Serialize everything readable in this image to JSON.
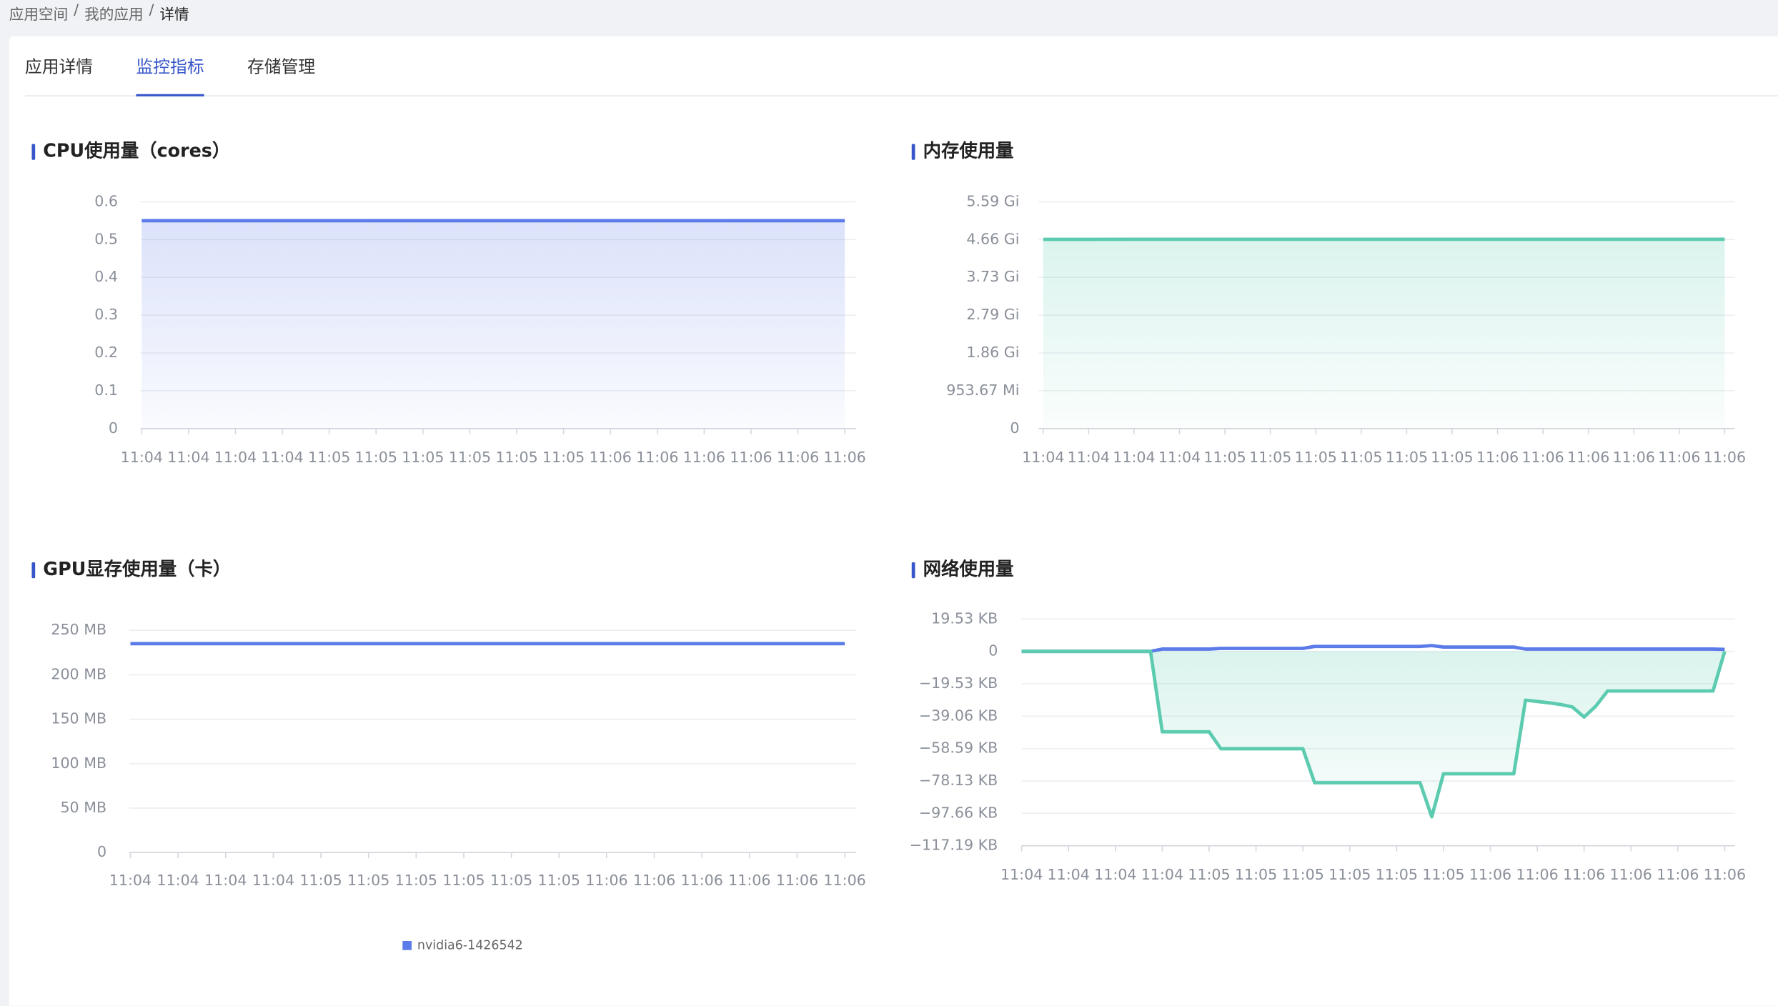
{
  "breadcrumb": {
    "items": [
      "应用空间",
      "我的应用",
      "详情"
    ],
    "separator": "/"
  },
  "tabs": {
    "items": [
      "应用详情",
      "监控指标",
      "存储管理"
    ],
    "active": 1
  },
  "chart_data": [
    {
      "type": "area",
      "title": "CPU使用量（cores）",
      "categories": [
        "11:04",
        "11:04",
        "11:04",
        "11:04",
        "11:05",
        "11:05",
        "11:05",
        "11:05",
        "11:05",
        "11:05",
        "11:06",
        "11:06",
        "11:06",
        "11:06",
        "11:06",
        "11:06"
      ],
      "series": [
        {
          "color": "#5b7be8",
          "area": true,
          "values": [
            0.55,
            0.55,
            0.55,
            0.55,
            0.55,
            0.55,
            0.55,
            0.55,
            0.55,
            0.55,
            0.55,
            0.55,
            0.55,
            0.55,
            0.55,
            0.55
          ]
        }
      ],
      "ylim": [
        0,
        0.6
      ],
      "yticks": [
        0,
        0.1,
        0.2,
        0.3,
        0.4,
        0.5,
        0.6
      ],
      "grid": true
    },
    {
      "type": "area",
      "title": "内存使用量",
      "categories": [
        "11:04",
        "11:04",
        "11:04",
        "11:04",
        "11:05",
        "11:05",
        "11:05",
        "11:05",
        "11:05",
        "11:05",
        "11:06",
        "11:06",
        "11:06",
        "11:06",
        "11:06",
        "11:06"
      ],
      "series": [
        {
          "color": "#5ccbb0",
          "area": true,
          "values": [
            4775,
            4775,
            4776,
            4776,
            4777,
            4777,
            4777,
            4777,
            4777,
            4777,
            4777,
            4777,
            4777,
            4777,
            4777,
            4777
          ]
        }
      ],
      "ylim": [
        0,
        5722.05
      ],
      "yticks": [
        0,
        {
          "value": 953.67,
          "label": "953.67 Mi"
        },
        {
          "value": 1907.35,
          "label": "1.86 Gi"
        },
        {
          "value": 2861.02,
          "label": "2.79 Gi"
        },
        {
          "value": 3814.7,
          "label": "3.73 Gi"
        },
        {
          "value": 4768.37,
          "label": "4.66 Gi"
        },
        {
          "value": 5722.05,
          "label": "5.59 Gi"
        }
      ],
      "grid": true
    },
    {
      "type": "line",
      "title": "GPU显存使用量（卡）",
      "categories": [
        "11:04",
        "11:04",
        "11:04",
        "11:04",
        "11:05",
        "11:05",
        "11:05",
        "11:05",
        "11:05",
        "11:05",
        "11:06",
        "11:06",
        "11:06",
        "11:06",
        "11:06",
        "11:06"
      ],
      "series": [
        {
          "name": "nvidia6-1426542",
          "color": "#5b7be8",
          "area": false,
          "values": [
            235,
            235,
            235,
            235,
            235,
            235,
            235,
            235,
            235,
            235,
            235,
            235,
            235,
            235,
            235,
            235
          ]
        }
      ],
      "ylim": [
        0,
        250
      ],
      "yticks": [
        0,
        {
          "value": 50,
          "label": "50 MB"
        },
        {
          "value": 100,
          "label": "100 MB"
        },
        {
          "value": 150,
          "label": "150 MB"
        },
        {
          "value": 200,
          "label": "200 MB"
        },
        {
          "value": 250,
          "label": "250 MB"
        }
      ],
      "grid": true,
      "legend": "bottom"
    },
    {
      "type": "line",
      "title": "网络使用量",
      "categories": [
        "11:04",
        null,
        null,
        null,
        "11:04",
        null,
        null,
        null,
        "11:04",
        null,
        null,
        null,
        "11:04",
        null,
        null,
        null,
        "11:05",
        null,
        null,
        null,
        "11:05",
        null,
        null,
        null,
        "11:05",
        null,
        null,
        null,
        "11:05",
        null,
        null,
        null,
        "11:05",
        null,
        null,
        null,
        "11:05",
        null,
        null,
        null,
        "11:06",
        null,
        null,
        null,
        "11:06",
        null,
        null,
        null,
        "11:06",
        null,
        null,
        null,
        "11:06",
        null,
        null,
        null,
        "11:06",
        null,
        null,
        null,
        "11:06"
      ],
      "series": [
        {
          "color": "#5b7be8",
          "area": false,
          "values": [
            0,
            0,
            0,
            0,
            0,
            0,
            0,
            0,
            0,
            0,
            0,
            0,
            1.4,
            1.4,
            1.4,
            1.4,
            1.4,
            1.8,
            1.8,
            1.8,
            1.8,
            1.8,
            1.8,
            1.8,
            1.8,
            3,
            3,
            3,
            3,
            3,
            3,
            3,
            3,
            3,
            3,
            3.5,
            2.6,
            2.6,
            2.6,
            2.6,
            2.6,
            2.6,
            2.6,
            1.4,
            1.4,
            1.4,
            1.4,
            1.4,
            1.4,
            1.4,
            1.4,
            1.4,
            1.4,
            1.4,
            1.4,
            1.4,
            1.4,
            1.4,
            1.4,
            1.4,
            1.2
          ]
        },
        {
          "color": "#5ccbb0",
          "area": true,
          "values": [
            0,
            0,
            0,
            0,
            0,
            0,
            0,
            0,
            0,
            0,
            0,
            0,
            -48.5,
            -48.5,
            -48.5,
            -48.5,
            -48.5,
            -58.7,
            -58.7,
            -58.7,
            -58.7,
            -58.7,
            -58.7,
            -58.7,
            -58.7,
            -79.2,
            -79.2,
            -79.2,
            -79.2,
            -79.2,
            -79.2,
            -79.2,
            -79.2,
            -79.2,
            -79.2,
            -99.7,
            -73.8,
            -73.8,
            -73.8,
            -73.8,
            -73.8,
            -73.8,
            -73.8,
            -29.4,
            -30.2,
            -31,
            -32,
            -33.5,
            -39.6,
            -33,
            -23.9,
            -23.9,
            -23.9,
            -23.9,
            -23.9,
            -23.9,
            -23.9,
            -23.9,
            -23.9,
            -23.9,
            0
          ]
        }
      ],
      "ylim": [
        -117.19,
        19.53
      ],
      "yticks": [
        {
          "value": -117.19,
          "label": "−117.19 KB"
        },
        {
          "value": -97.66,
          "label": "−97.66 KB"
        },
        {
          "value": -78.13,
          "label": "−78.13 KB"
        },
        {
          "value": -58.59,
          "label": "−58.59 KB"
        },
        {
          "value": -39.06,
          "label": "−39.06 KB"
        },
        {
          "value": -19.53,
          "label": "−19.53 KB"
        },
        0,
        {
          "value": 19.53,
          "label": "19.53 KB"
        }
      ],
      "grid": true
    }
  ]
}
